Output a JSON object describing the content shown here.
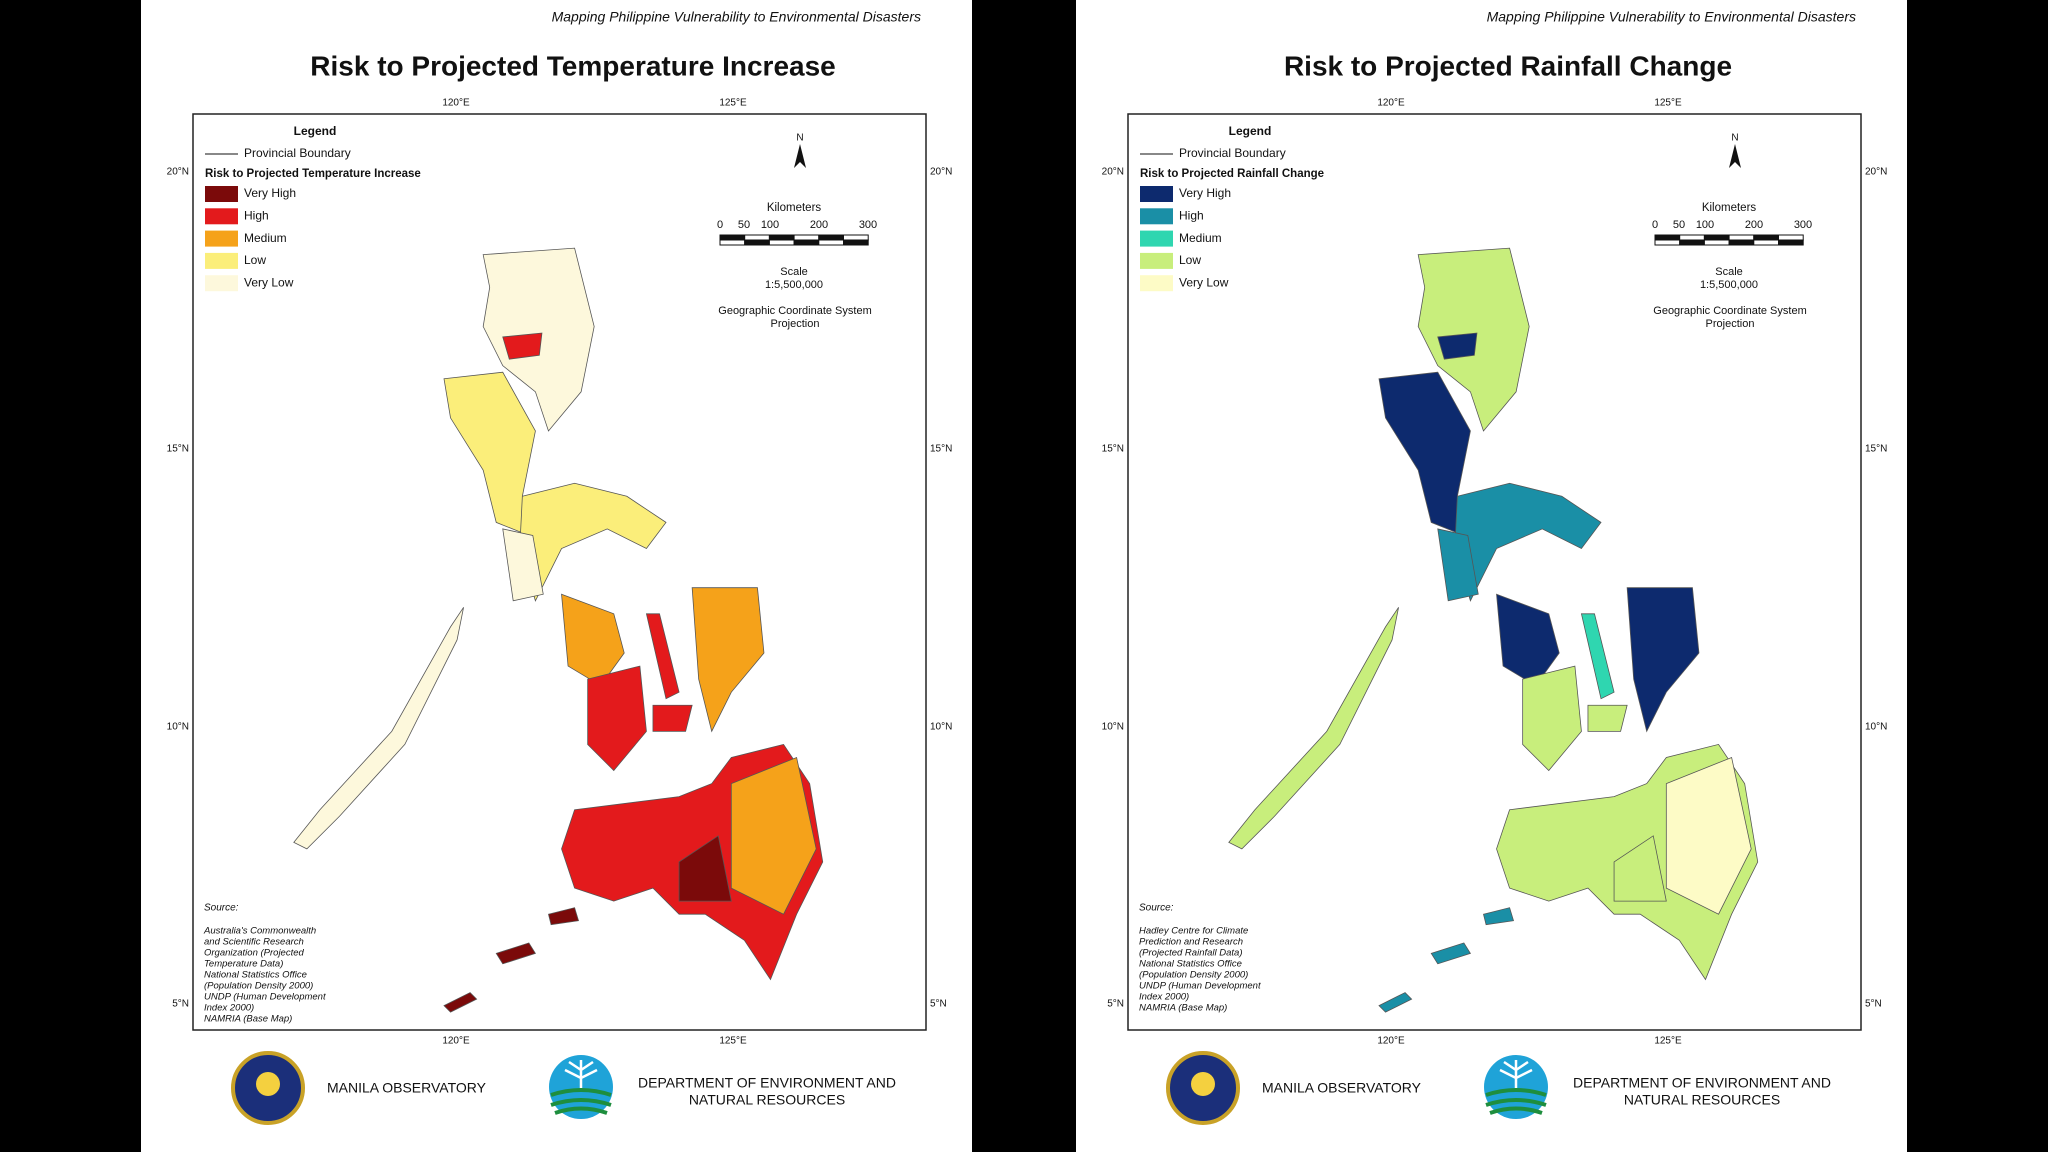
{
  "panels": [
    {
      "header": "Mapping Philippine Vulnerability to Environmental Disasters",
      "title": "Risk to Projected Temperature Increase",
      "map": {
        "top_labels": [
          "120°E",
          "125°E"
        ],
        "bottom_labels": [
          "120°E",
          "125°E"
        ],
        "left_labels": [
          "20°N",
          "15°N",
          "10°N",
          "5°N"
        ],
        "right_labels": [
          "20°N",
          "15°N",
          "10°N",
          "5°N"
        ]
      },
      "legend": {
        "title": "Legend",
        "boundary": "Provincial Boundary",
        "heading": "Risk to Projected Temperature Increase",
        "items": [
          {
            "label": "Very High",
            "color": "#7b0a0a"
          },
          {
            "label": "High",
            "color": "#e31a1c"
          },
          {
            "label": "Medium",
            "color": "#f5a21a"
          },
          {
            "label": "Low",
            "color": "#fbee7a"
          },
          {
            "label": "Very Low",
            "color": "#fdf8dc"
          }
        ]
      },
      "north": "N",
      "scale": {
        "title": "Kilometers",
        "labels": [
          "0",
          "50",
          "100",
          "200",
          "300"
        ],
        "scale": "Scale",
        "ratio": "1:5,500,000",
        "system": "Geographic Coordinate System",
        "projection": "Projection"
      },
      "source": {
        "title": "Source:",
        "lines": [
          "Australia's Commonwealth",
          "and Scientific Research",
          "Organization (Projected",
          "Temperature Data)",
          "National Statistics Office",
          "(Population Density 2000)",
          "UNDP (Human Development",
          "Index 2000)",
          "NAMRIA (Base Map)"
        ]
      },
      "footer": {
        "org1": "MANILA OBSERVATORY",
        "org2_lines": [
          "DEPARTMENT OF ENVIRONMENT AND",
          "NATURAL RESOURCES"
        ]
      }
    },
    {
      "header": "Mapping Philippine Vulnerability to Environmental Disasters",
      "title": "Risk to Projected Rainfall Change",
      "map": {
        "top_labels": [
          "120°E",
          "125°E"
        ],
        "bottom_labels": [
          "120°E",
          "125°E"
        ],
        "left_labels": [
          "20°N",
          "15°N",
          "10°N",
          "5°N"
        ],
        "right_labels": [
          "20°N",
          "15°N",
          "10°N",
          "5°N"
        ]
      },
      "legend": {
        "title": "Legend",
        "boundary": "Provincial Boundary",
        "heading": "Risk to Projected Rainfall Change",
        "items": [
          {
            "label": "Very High",
            "color": "#0d2a6e"
          },
          {
            "label": "High",
            "color": "#1a8fa6"
          },
          {
            "label": "Medium",
            "color": "#2fd6b0"
          },
          {
            "label": "Low",
            "color": "#c8ee7c"
          },
          {
            "label": "Very Low",
            "color": "#fdfbc6"
          }
        ]
      },
      "north": "N",
      "scale": {
        "title": "Kilometers",
        "labels": [
          "0",
          "50",
          "100",
          "200",
          "300"
        ],
        "scale": "Scale",
        "ratio": "1:5,500,000",
        "system": "Geographic Coordinate System",
        "projection": "Projection"
      },
      "source": {
        "title": "Source:",
        "lines": [
          "Hadley Centre for Climate",
          "Prediction and Research",
          "(Projected Rainfall Data)",
          "National Statistics Office",
          "(Population Density 2000)",
          "UNDP (Human Development",
          "Index 2000)",
          "NAMRIA (Base Map)"
        ]
      },
      "footer": {
        "org1": "MANILA OBSERVATORY",
        "org2_lines": [
          "DEPARTMENT OF ENVIRONMENT AND",
          "NATURAL RESOURCES"
        ]
      }
    }
  ]
}
